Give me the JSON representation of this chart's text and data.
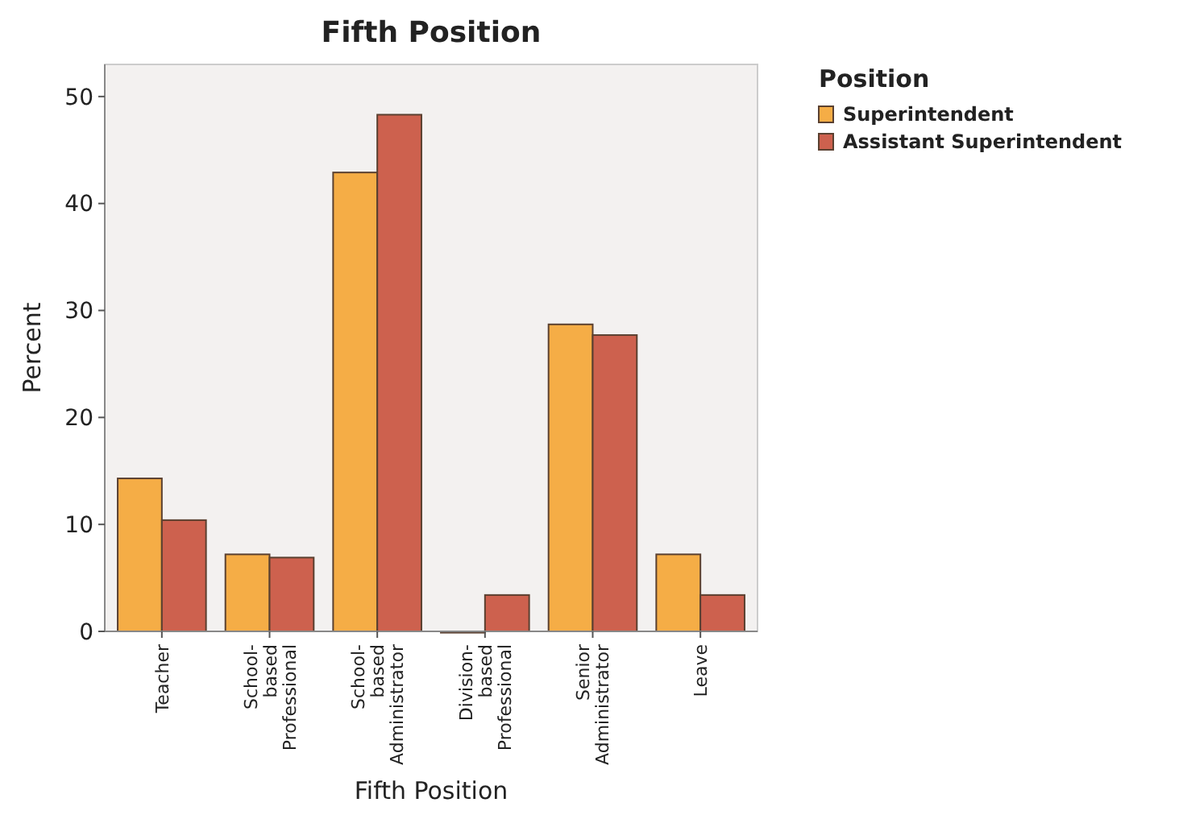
{
  "chart_data": {
    "type": "bar",
    "title": "Fifth Position",
    "xlabel": "Fifth Position",
    "ylabel": "Percent",
    "legend_title": "Position",
    "legend": "top right",
    "categories": [
      "Teacher",
      "School-\nbased\nProfessional",
      "School-\nbased\nAdministrator",
      "Division-\nbased\nProfessional",
      "Senior\nAdministrator",
      "Leave"
    ],
    "series": [
      {
        "name": "Superintendent",
        "color": "#f5ad46",
        "values": [
          14.3,
          7.2,
          42.9,
          0,
          28.7,
          7.2
        ]
      },
      {
        "name": "Assistant Superintendent",
        "color": "#cd614e",
        "values": [
          10.4,
          6.9,
          48.3,
          3.4,
          27.7,
          3.4
        ]
      }
    ],
    "ylim": [
      0,
      53
    ],
    "yticks": [
      0,
      10,
      20,
      30,
      40,
      50
    ],
    "grid": false
  }
}
